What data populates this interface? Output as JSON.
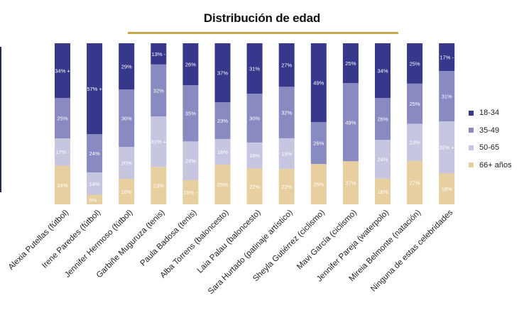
{
  "chart_data": {
    "type": "bar",
    "stacked": true,
    "normalized_percent": true,
    "title": "Distribución de edad",
    "categories": [
      "Alexia Putellas (fútbol)",
      "Irene Paredes (fútbol)",
      "Jennifer Hermoso (fútbol)",
      "Garbiñe Muguruza (tenis)",
      "Paula Badosa (tenis)",
      "Alba Torrens (baloncesto)",
      "Laia Palau (baloncesto)",
      "Sara Hurtado (patinaje artístico)",
      "Sheyla Gutiérrez (ciclismo)",
      "Mavi García (ciclismo)",
      "Jennifer Pareja (waterpolo)",
      "Mireia Belmonte (natación)",
      "Ninguna de estas celebridades"
    ],
    "series": [
      {
        "name": "66+ años",
        "color": "#e7cfa0",
        "values": [
          24,
          6,
          16,
          23,
          15,
          25,
          22,
          22,
          25,
          27,
          16,
          27,
          19
        ],
        "labels": [
          "24%",
          "6% -",
          "16%",
          "23%",
          "15% -",
          "25%",
          "22%",
          "22%",
          "25%",
          "27%",
          "16%",
          "27%",
          "19%"
        ]
      },
      {
        "name": "50-65",
        "color": "#c6c6e1",
        "values": [
          17,
          14,
          20,
          31,
          24,
          16,
          16,
          19,
          0,
          0,
          24,
          23,
          32
        ],
        "labels": [
          "17% -",
          "14%",
          "20%",
          "31% +",
          "24%",
          "16%",
          "16%",
          "19%",
          "",
          "",
          "24%",
          "23%",
          "32% +"
        ]
      },
      {
        "name": "35-49",
        "color": "#8a8ac2",
        "values": [
          25,
          24,
          36,
          32,
          35,
          23,
          30,
          32,
          26,
          49,
          26,
          25,
          31
        ],
        "labels": [
          "25%",
          "24%",
          "36%",
          "32%",
          "35%",
          "23%",
          "30%",
          "32%",
          "26%",
          "49%",
          "26%",
          "25%",
          "31%"
        ]
      },
      {
        "name": "18-34",
        "color": "#37378c",
        "values": [
          34,
          57,
          29,
          13,
          26,
          37,
          31,
          27,
          49,
          25,
          34,
          25,
          17
        ],
        "labels": [
          "34% +",
          "57% +",
          "29%",
          "13% -",
          "26%",
          "37%",
          "31%",
          "27%",
          "49%",
          "25%",
          "34%",
          "25%",
          "17% -"
        ]
      }
    ],
    "legend_order": [
      "18-34",
      "35-49",
      "50-65",
      "66+ años"
    ],
    "legend_position": "right",
    "ylim": [
      0,
      100
    ],
    "grid": false
  }
}
